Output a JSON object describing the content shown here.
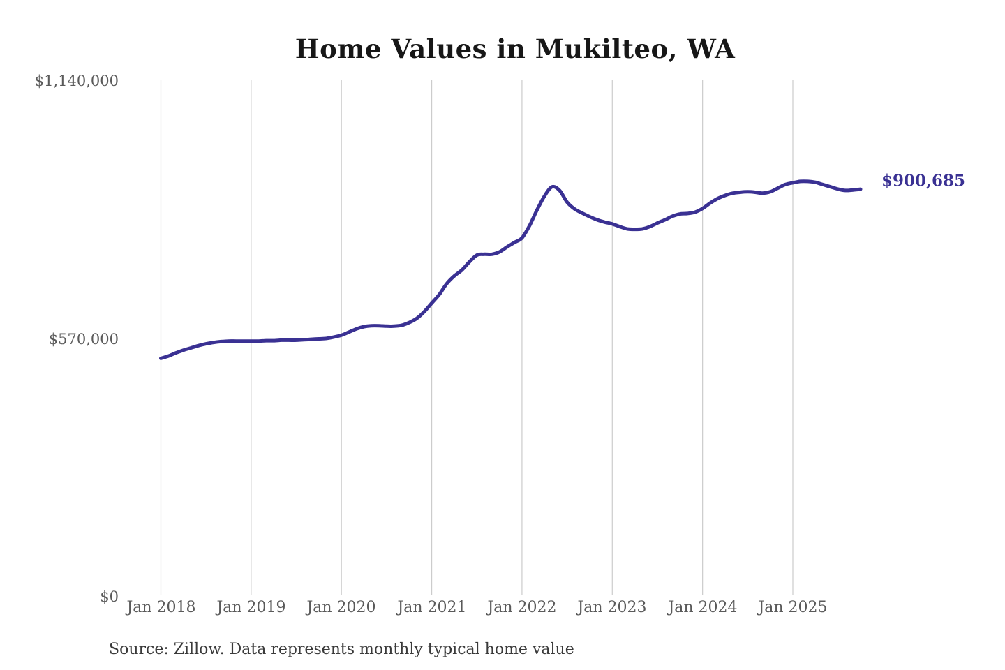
{
  "page": {
    "title": "Home Values in Mukilteo, WA",
    "source_note": "Source: Zillow. Data represents monthly typical home value"
  },
  "colors": {
    "background": "#ffffff",
    "line": "#3a3193",
    "gridline": "#cccccc",
    "title_text": "#171717",
    "axis_text": "#5a5a5a",
    "source_text": "#3a3a3a",
    "end_label_text": "#3a3193"
  },
  "chart_data": {
    "type": "line",
    "title": "Home Values in Mukilteo, WA",
    "series_name": "Typical home value ($)",
    "x_unit": "month",
    "x": [
      "2018-01",
      "2018-02",
      "2018-03",
      "2018-04",
      "2018-05",
      "2018-06",
      "2018-07",
      "2018-08",
      "2018-09",
      "2018-10",
      "2018-11",
      "2018-12",
      "2019-01",
      "2019-02",
      "2019-03",
      "2019-04",
      "2019-05",
      "2019-06",
      "2019-07",
      "2019-08",
      "2019-09",
      "2019-10",
      "2019-11",
      "2019-12",
      "2020-01",
      "2020-02",
      "2020-03",
      "2020-04",
      "2020-05",
      "2020-06",
      "2020-07",
      "2020-08",
      "2020-09",
      "2020-10",
      "2020-11",
      "2020-12",
      "2021-01",
      "2021-02",
      "2021-03",
      "2021-04",
      "2021-05",
      "2021-06",
      "2021-07",
      "2021-08",
      "2021-09",
      "2021-10",
      "2021-11",
      "2021-12",
      "2022-01",
      "2022-02",
      "2022-03",
      "2022-04",
      "2022-05",
      "2022-06",
      "2022-07",
      "2022-08",
      "2022-09",
      "2022-10",
      "2022-11",
      "2022-12",
      "2023-01",
      "2023-02",
      "2023-03",
      "2023-04",
      "2023-05",
      "2023-06",
      "2023-07",
      "2023-08",
      "2023-09",
      "2023-10",
      "2023-11",
      "2023-12",
      "2024-01",
      "2024-02",
      "2024-03",
      "2024-04",
      "2024-05",
      "2024-06",
      "2024-07",
      "2024-08",
      "2024-09",
      "2024-10",
      "2024-11",
      "2024-12",
      "2025-01",
      "2025-02",
      "2025-03",
      "2025-04",
      "2025-05",
      "2025-06",
      "2025-07",
      "2025-08",
      "2025-09",
      "2025-10"
    ],
    "values": [
      527000,
      532000,
      539000,
      545000,
      550000,
      555000,
      559000,
      562000,
      564000,
      565000,
      565000,
      565000,
      565000,
      565000,
      566000,
      566000,
      567000,
      567000,
      567000,
      568000,
      569000,
      570000,
      571000,
      574000,
      578000,
      585000,
      592000,
      597000,
      599000,
      599000,
      598000,
      598000,
      600000,
      606000,
      615000,
      630000,
      649000,
      668000,
      692000,
      709000,
      722000,
      740000,
      755000,
      757000,
      757000,
      762000,
      773000,
      783000,
      793000,
      820000,
      855000,
      886000,
      906000,
      898000,
      872000,
      857000,
      848000,
      840000,
      833000,
      828000,
      824000,
      818000,
      813000,
      812000,
      813000,
      818000,
      826000,
      833000,
      841000,
      846000,
      847000,
      850000,
      858000,
      870000,
      880000,
      887000,
      892000,
      894000,
      895000,
      894000,
      892000,
      895000,
      903000,
      911000,
      915000,
      918000,
      918000,
      916000,
      911000,
      906000,
      901000,
      898000,
      899000,
      900685
    ],
    "ylim": [
      0,
      1140000
    ],
    "y_ticks": [
      {
        "label": "$1,140,000",
        "value": 1140000
      },
      {
        "label": "$570,000",
        "value": 570000
      },
      {
        "label": "$0",
        "value": 0
      }
    ],
    "x_ticks": [
      {
        "label": "Jan 2018",
        "month": "2018-01"
      },
      {
        "label": "Jan 2019",
        "month": "2019-01"
      },
      {
        "label": "Jan 2020",
        "month": "2020-01"
      },
      {
        "label": "Jan 2021",
        "month": "2021-01"
      },
      {
        "label": "Jan 2022",
        "month": "2022-01"
      },
      {
        "label": "Jan 2023",
        "month": "2023-01"
      },
      {
        "label": "Jan 2024",
        "month": "2024-01"
      },
      {
        "label": "Jan 2025",
        "month": "2025-01"
      }
    ],
    "grid": "vertical-only",
    "legend": "none",
    "end_annotation": {
      "label": "$900,685",
      "value": 900685
    },
    "source": "Source: Zillow. Data represents monthly typical home value"
  }
}
